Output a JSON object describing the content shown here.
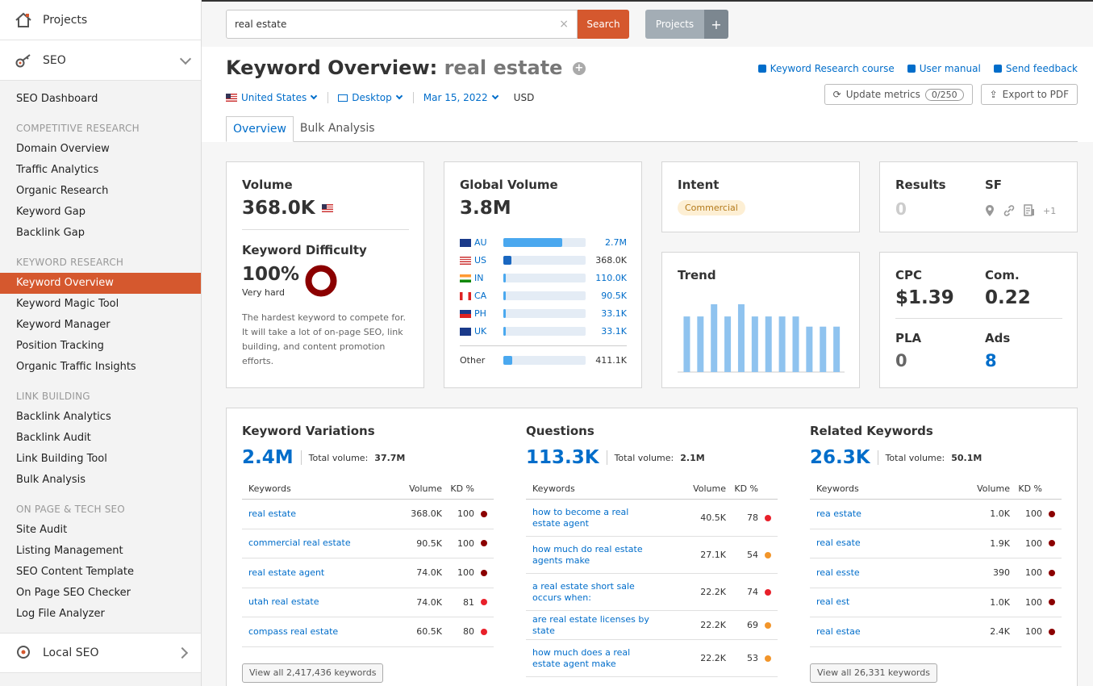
{
  "sidebar": {
    "projects_label": "Projects",
    "seo_label": "SEO",
    "local_seo_label": "Local SEO",
    "items": [
      {
        "type": "item",
        "label": "SEO Dashboard"
      },
      {
        "type": "head",
        "label": "COMPETITIVE RESEARCH"
      },
      {
        "type": "item",
        "label": "Domain Overview"
      },
      {
        "type": "item",
        "label": "Traffic Analytics"
      },
      {
        "type": "item",
        "label": "Organic Research"
      },
      {
        "type": "item",
        "label": "Keyword Gap"
      },
      {
        "type": "item",
        "label": "Backlink Gap"
      },
      {
        "type": "head",
        "label": "KEYWORD RESEARCH"
      },
      {
        "type": "item",
        "label": "Keyword Overview",
        "active": true
      },
      {
        "type": "item",
        "label": "Keyword Magic Tool"
      },
      {
        "type": "item",
        "label": "Keyword Manager"
      },
      {
        "type": "item",
        "label": "Position Tracking"
      },
      {
        "type": "item",
        "label": "Organic Traffic Insights"
      },
      {
        "type": "head",
        "label": "LINK BUILDING"
      },
      {
        "type": "item",
        "label": "Backlink Analytics"
      },
      {
        "type": "item",
        "label": "Backlink Audit"
      },
      {
        "type": "item",
        "label": "Link Building Tool"
      },
      {
        "type": "item",
        "label": "Bulk Analysis"
      },
      {
        "type": "head",
        "label": "ON PAGE & TECH SEO"
      },
      {
        "type": "item",
        "label": "Site Audit"
      },
      {
        "type": "item",
        "label": "Listing Management"
      },
      {
        "type": "item",
        "label": "SEO Content Template"
      },
      {
        "type": "item",
        "label": "On Page SEO Checker"
      },
      {
        "type": "item",
        "label": "Log File Analyzer"
      }
    ]
  },
  "topbar": {
    "search_value": "real estate",
    "search_button": "Search",
    "projects_button": "Projects",
    "projects_plus": "+"
  },
  "header": {
    "title": "Keyword Overview:",
    "keyword": "real estate",
    "country": "United States",
    "device": "Desktop",
    "date": "Mar 15, 2022",
    "currency": "USD",
    "links": [
      "Keyword Research course",
      "User manual",
      "Send feedback"
    ],
    "update_metrics": "Update metrics",
    "update_count": "0/250",
    "export": "Export to PDF",
    "tabs": [
      "Overview",
      "Bulk Analysis"
    ]
  },
  "volume": {
    "title": "Volume",
    "value": "368.0K",
    "kd_title": "Keyword Difficulty",
    "kd_value": "100%",
    "kd_label": "Very hard",
    "kd_percent": 100,
    "kd_desc": "The hardest keyword to compete for. It will take a lot of on-page SEO, link building, and content promotion efforts."
  },
  "global_volume": {
    "title": "Global Volume",
    "value": "3.8M",
    "rows": [
      {
        "code": "AU",
        "value": "2.7M",
        "fraction": 0.72
      },
      {
        "code": "US",
        "value": "368.0K",
        "fraction": 0.1,
        "plain": true
      },
      {
        "code": "IN",
        "value": "110.0K",
        "fraction": 0.03
      },
      {
        "code": "CA",
        "value": "90.5K",
        "fraction": 0.025
      },
      {
        "code": "PH",
        "value": "33.1K",
        "fraction": 0.015
      },
      {
        "code": "UK",
        "value": "33.1K",
        "fraction": 0.015
      }
    ],
    "other_label": "Other",
    "other_value": "411.1K",
    "other_fraction": 0.11
  },
  "intent": {
    "title": "Intent",
    "badge": "Commercial"
  },
  "trend": {
    "title": "Trend",
    "values": [
      0.82,
      0.82,
      1.0,
      0.82,
      1.0,
      0.82,
      0.82,
      0.82,
      0.82,
      0.67,
      0.67,
      0.67
    ]
  },
  "results": {
    "title": "Results",
    "value": "0",
    "sf_title": "SF",
    "sf_more": "+1"
  },
  "cpc": {
    "cpc_title": "CPC",
    "cpc_value": "$1.39",
    "com_title": "Com.",
    "com_value": "0.22",
    "pla_title": "PLA",
    "pla_value": "0",
    "ads_title": "Ads",
    "ads_value": "8"
  },
  "panels": [
    {
      "title": "Keyword Variations",
      "count": "2.4M",
      "total_label": "Total volume:",
      "total_value": "37.7M",
      "col_kw": "Keywords",
      "col_vol": "Volume",
      "col_kd": "KD %",
      "rows": [
        {
          "kw": "real estate",
          "vol": "368.0K",
          "kd": "100",
          "color": "#8b0000"
        },
        {
          "kw": "commercial real estate",
          "vol": "90.5K",
          "kd": "100",
          "color": "#8b0000"
        },
        {
          "kw": "real estate agent",
          "vol": "74.0K",
          "kd": "100",
          "color": "#8b0000"
        },
        {
          "kw": "utah real estate",
          "vol": "74.0K",
          "kd": "81",
          "color": "#e8202a"
        },
        {
          "kw": "compass real estate",
          "vol": "60.5K",
          "kd": "80",
          "color": "#e8202a"
        }
      ],
      "view_all": "View all 2,417,436 keywords"
    },
    {
      "title": "Questions",
      "count": "113.3K",
      "total_label": "Total volume:",
      "total_value": "2.1M",
      "col_kw": "Keywords",
      "col_vol": "Volume",
      "col_kd": "KD %",
      "rows": [
        {
          "kw": "how to become a real estate agent",
          "vol": "40.5K",
          "kd": "78",
          "color": "#e8202a"
        },
        {
          "kw": "how much do real estate agents make",
          "vol": "27.1K",
          "kd": "54",
          "color": "#f2952a"
        },
        {
          "kw": "a real estate short sale occurs when:",
          "vol": "22.2K",
          "kd": "74",
          "color": "#e8202a"
        },
        {
          "kw": "are real estate licenses by state",
          "vol": "22.2K",
          "kd": "69",
          "color": "#f2952a"
        },
        {
          "kw": "how much does a real estate agent make",
          "vol": "22.2K",
          "kd": "53",
          "color": "#f2952a"
        }
      ],
      "view_all": ""
    },
    {
      "title": "Related Keywords",
      "count": "26.3K",
      "total_label": "Total volume:",
      "total_value": "50.1M",
      "col_kw": "Keywords",
      "col_vol": "Volume",
      "col_kd": "KD %",
      "rows": [
        {
          "kw": "rea estate",
          "vol": "1.0K",
          "kd": "100",
          "color": "#8b0000"
        },
        {
          "kw": "real esate",
          "vol": "1.9K",
          "kd": "100",
          "color": "#8b0000"
        },
        {
          "kw": "real esste",
          "vol": "390",
          "kd": "100",
          "color": "#8b0000"
        },
        {
          "kw": "real est",
          "vol": "1.0K",
          "kd": "100",
          "color": "#8b0000"
        },
        {
          "kw": "real estae",
          "vol": "2.4K",
          "kd": "100",
          "color": "#8b0000"
        }
      ],
      "view_all": "View all 26,331 keywords"
    }
  ]
}
